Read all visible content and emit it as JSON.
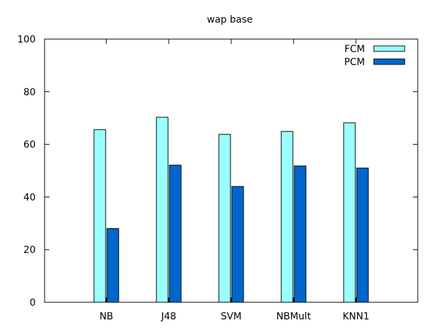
{
  "chart_data": {
    "type": "bar",
    "title": "wap base",
    "xlabel": "",
    "ylabel": "",
    "categories": [
      "NB",
      "J48",
      "SVM",
      "NBMult",
      "KNN1"
    ],
    "series": [
      {
        "name": "FCM",
        "color": "#99ffff",
        "values": [
          65.6,
          70.3,
          63.8,
          64.9,
          68.2
        ]
      },
      {
        "name": "PCM",
        "color": "#0066cc",
        "values": [
          28.0,
          52.1,
          44.0,
          51.8,
          51.0
        ]
      }
    ],
    "ylim": [
      0,
      100
    ],
    "yticks": [
      0,
      20,
      40,
      60,
      80,
      100
    ],
    "grid": false,
    "legend_position": "top-right"
  }
}
